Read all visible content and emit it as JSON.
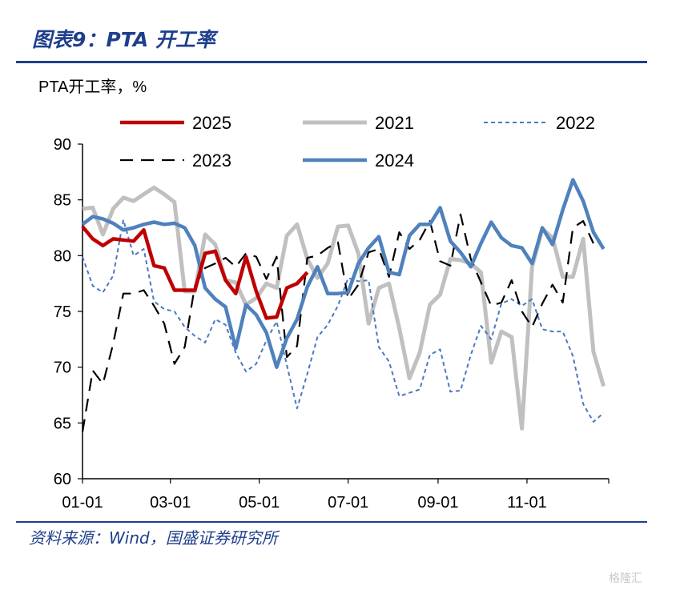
{
  "header": {
    "figure_title": "图表9：PTA 开工率",
    "unit_label": "PTA开工率，%",
    "source": "资料来源：Wind，国盛证券研究所",
    "watermark": "格隆汇"
  },
  "colors": {
    "brand_blue": "#1f3f8c"
  },
  "chart_data": {
    "type": "line",
    "title": "",
    "xlabel": "",
    "ylabel": "PTA开工率，%",
    "ylim": [
      60,
      90
    ],
    "yticks": [
      60,
      65,
      70,
      75,
      80,
      85,
      90
    ],
    "xticks": [
      "01-01",
      "03-01",
      "05-01",
      "07-01",
      "09-01",
      "11-01"
    ],
    "x_unit": "week of year (1-52)",
    "grid": false,
    "legend": "top",
    "series": [
      {
        "name": "2025",
        "color": "#c00000",
        "style": "solid-thick",
        "x": [
          1,
          2,
          3,
          4,
          5,
          6,
          7,
          8,
          9,
          10,
          11,
          12,
          13,
          14,
          15,
          16,
          17,
          18,
          19,
          20,
          21,
          22,
          23,
          24
        ],
        "values": [
          82.6,
          81.5,
          80.9,
          81.5,
          81.4,
          81.3,
          82.3,
          79.1,
          78.9,
          76.9,
          76.9,
          76.9,
          80.2,
          80.4,
          77.8,
          76.6,
          79.9,
          76.8,
          74.4,
          74.5,
          77.1,
          77.5,
          78.5,
          null
        ]
      },
      {
        "name": "2021",
        "color": "#c0c0c0",
        "style": "solid-thick",
        "x": [
          1,
          2,
          3,
          4,
          5,
          6,
          7,
          8,
          9,
          10,
          11,
          12,
          13,
          14,
          15,
          16,
          17,
          18,
          19,
          20,
          21,
          22,
          23,
          24,
          25,
          26,
          27,
          28,
          29,
          30,
          31,
          32,
          33,
          34,
          35,
          36,
          37,
          38,
          39,
          40,
          41,
          42,
          43,
          44,
          45,
          46,
          47,
          48,
          49,
          50,
          51,
          52
        ],
        "values": [
          84.2,
          84.3,
          81.9,
          84.2,
          85.2,
          84.9,
          85.5,
          86.1,
          85.5,
          84.8,
          76.8,
          76.8,
          81.9,
          81.0,
          77.8,
          77.6,
          75.6,
          76.2,
          77.5,
          77.1,
          81.8,
          82.8,
          79.7,
          78.0,
          79.3,
          82.6,
          82.7,
          80.2,
          73.9,
          77.1,
          77.5,
          73.5,
          69.0,
          71.3,
          75.6,
          76.5,
          79.7,
          79.6,
          79.3,
          78.5,
          70.4,
          73.2,
          72.7,
          64.5,
          79.0,
          82.4,
          81.6,
          78.1,
          78.1,
          81.5,
          71.4,
          68.3
        ]
      },
      {
        "name": "2022",
        "color": "#4a78c2",
        "style": "dotted",
        "x": [
          1,
          2,
          3,
          4,
          5,
          6,
          7,
          8,
          9,
          10,
          11,
          12,
          13,
          14,
          15,
          16,
          17,
          18,
          19,
          20,
          21,
          22,
          23,
          24,
          25,
          26,
          27,
          28,
          29,
          30,
          31,
          32,
          33,
          34,
          35,
          36,
          37,
          38,
          39,
          40,
          41,
          42,
          43,
          44,
          45,
          46,
          47,
          48,
          49,
          50,
          51,
          52
        ],
        "values": [
          79.9,
          77.3,
          76.7,
          78.2,
          83.2,
          80.0,
          80.6,
          75.9,
          75.2,
          75.0,
          73.6,
          72.8,
          72.2,
          74.3,
          73.8,
          71.3,
          69.6,
          70.3,
          72.4,
          74.1,
          70.2,
          66.3,
          69.4,
          72.7,
          73.8,
          75.5,
          78.0,
          77.7,
          77.8,
          71.8,
          70.5,
          67.4,
          67.7,
          68.0,
          71.1,
          71.6,
          67.8,
          67.9,
          71.1,
          73.7,
          72.5,
          75.7,
          76.1,
          75.5,
          76.1,
          73.4,
          73.2,
          73.2,
          71.0,
          66.7,
          65.1,
          65.9
        ]
      },
      {
        "name": "2023",
        "color": "#000000",
        "style": "dashed",
        "x": [
          1,
          2,
          3,
          4,
          5,
          6,
          7,
          8,
          9,
          10,
          11,
          12,
          13,
          14,
          15,
          16,
          17,
          18,
          19,
          20,
          21,
          22,
          23,
          24,
          25,
          26,
          27,
          28,
          29,
          30,
          31,
          32,
          33,
          34,
          35,
          36,
          37,
          38,
          39,
          40,
          41,
          42,
          43,
          44,
          45,
          46,
          47,
          48,
          49,
          50,
          51,
          52
        ],
        "values": [
          64.2,
          69.7,
          68.5,
          72.1,
          76.6,
          76.6,
          76.9,
          75.5,
          73.9,
          70.3,
          71.8,
          77.3,
          78.9,
          79.3,
          79.8,
          79.0,
          80.2,
          79.9,
          77.9,
          79.9,
          70.9,
          71.9,
          79.8,
          80.0,
          80.7,
          81.2,
          76.1,
          77.4,
          80.3,
          80.6,
          78.1,
          82.1,
          80.6,
          81.4,
          83.1,
          79.5,
          79.1,
          83.7,
          79.7,
          77.6,
          75.5,
          75.8,
          77.8,
          75.0,
          73.6,
          75.7,
          77.4,
          75.8,
          82.5,
          83.1,
          81.1,
          null
        ]
      },
      {
        "name": "2024",
        "color": "#4f81bd",
        "style": "solid-thick",
        "x": [
          1,
          2,
          3,
          4,
          5,
          6,
          7,
          8,
          9,
          10,
          11,
          12,
          13,
          14,
          15,
          16,
          17,
          18,
          19,
          20,
          21,
          22,
          23,
          24,
          25,
          26,
          27,
          28,
          29,
          30,
          31,
          32,
          33,
          34,
          35,
          36,
          37,
          38,
          39,
          40,
          41,
          42,
          43,
          44,
          45,
          46,
          47,
          48,
          49,
          50,
          51,
          52
        ],
        "values": [
          82.8,
          83.5,
          83.3,
          82.9,
          82.3,
          82.5,
          82.8,
          83.0,
          82.8,
          82.9,
          82.5,
          80.9,
          77.1,
          76.1,
          75.4,
          71.7,
          75.6,
          74.7,
          73.1,
          70.0,
          72.6,
          74.3,
          77.2,
          79.0,
          76.6,
          76.6,
          76.7,
          79.3,
          80.7,
          81.7,
          78.5,
          78.3,
          81.8,
          82.8,
          82.8,
          84.3,
          81.3,
          80.3,
          79.0,
          81.1,
          83.0,
          81.6,
          80.9,
          80.7,
          79.3,
          82.5,
          81.0,
          84.1,
          86.8,
          84.9,
          82.1,
          80.6
        ]
      }
    ]
  }
}
